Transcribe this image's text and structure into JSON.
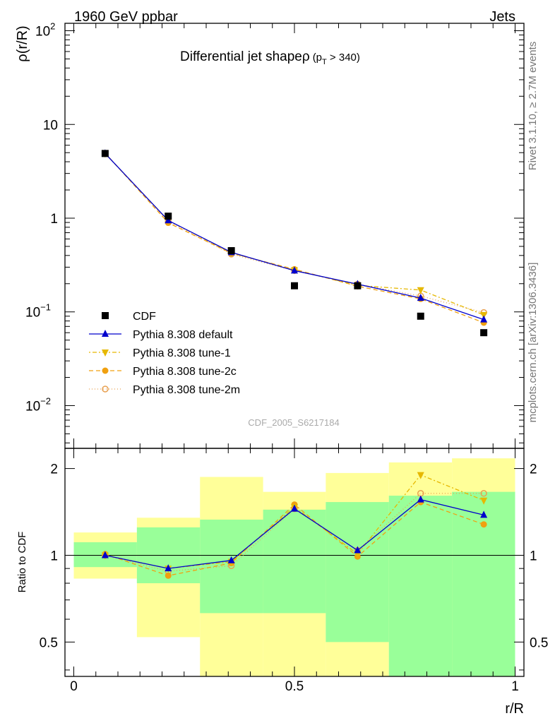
{
  "header": {
    "left": "1960 GeV ppbar",
    "right": "Jets",
    "plot_title": "Differential jet shapeρ",
    "title_cut_pre": "(p",
    "title_cut_sub": "T",
    "title_cut_post": " > 340)",
    "watermark": "CDF_2005_S6217184",
    "side_rivet": "Rivet 3.1.10, ≥ 2.7M events",
    "side_site": "mcplots.cern.ch [arXiv:1306.3436]"
  },
  "axes": {
    "ylabel_top": "ρ(r/R)",
    "ylabel_bottom": "Ratio to CDF",
    "xlabel": "r/R",
    "top_ticks": [
      {
        "v": 0.01,
        "base": "10",
        "exp": "−2"
      },
      {
        "v": 0.1,
        "base": "10",
        "exp": "−1"
      },
      {
        "v": 1,
        "base": "1",
        "exp": ""
      },
      {
        "v": 10,
        "base": "10",
        "exp": ""
      },
      {
        "v": 100,
        "base": "10",
        "exp": "2"
      }
    ],
    "ratio_ticks": [
      {
        "v": 0.5,
        "label": "0.5"
      },
      {
        "v": 1,
        "label": "1"
      },
      {
        "v": 2,
        "label": "2"
      }
    ],
    "x_ticks": [
      {
        "v": 0,
        "label": "0"
      },
      {
        "v": 0.5,
        "label": "0.5"
      },
      {
        "v": 1,
        "label": "1"
      }
    ]
  },
  "chart_data": {
    "type": "scatter",
    "x_range": [
      -0.02,
      1.02
    ],
    "y_range_top": [
      0.0035,
      120
    ],
    "y_log_top": true,
    "y_range_ratio": [
      0.38,
      2.35
    ],
    "y_log_ratio": true,
    "bin_edges": [
      0.0,
      0.143,
      0.286,
      0.429,
      0.571,
      0.714,
      0.857,
      1.0
    ],
    "x": [
      0.071,
      0.214,
      0.357,
      0.5,
      0.643,
      0.786,
      0.929
    ],
    "legend_position": "left-middle",
    "data": {
      "name": "CDF",
      "values": [
        4.9,
        1.05,
        0.45,
        0.19,
        0.19,
        0.09,
        0.06
      ]
    },
    "series": [
      {
        "name": "Pythia 8.308 default",
        "color": "#0000cc",
        "dash": "",
        "marker": "triangle",
        "ratio": [
          1.0,
          0.9,
          0.96,
          1.45,
          1.04,
          1.56,
          1.38
        ]
      },
      {
        "name": "Pythia 8.308 tune-1",
        "color": "#e6b800",
        "dash": "2,3,6,3",
        "marker": "triangle-down",
        "ratio": [
          1.0,
          0.9,
          0.95,
          1.47,
          1.01,
          1.9,
          1.55
        ]
      },
      {
        "name": "Pythia 8.308 tune-2c",
        "color": "#f0a010",
        "dash": "6,4",
        "marker": "circle",
        "ratio": [
          1.01,
          0.85,
          0.94,
          1.5,
          0.99,
          1.53,
          1.28
        ]
      },
      {
        "name": "Pythia 8.308 tune-2m",
        "color": "#e8a050",
        "dash": "1,3",
        "marker": "open-circle",
        "ratio": [
          1.0,
          0.88,
          0.92,
          1.45,
          1.04,
          1.64,
          1.64
        ]
      }
    ],
    "ratio_bands": {
      "green": [
        [
          0.91,
          1.11
        ],
        [
          0.8,
          1.25
        ],
        [
          0.63,
          1.33
        ],
        [
          0.63,
          1.44
        ],
        [
          0.5,
          1.53
        ],
        [
          0.36,
          1.61
        ],
        [
          0.33,
          1.66
        ]
      ],
      "yellow": [
        [
          0.83,
          1.2
        ],
        [
          0.52,
          1.35
        ],
        [
          0.32,
          1.87
        ],
        [
          0.32,
          1.66
        ],
        [
          0.3,
          1.93
        ],
        [
          0.36,
          2.1
        ],
        [
          0.3,
          2.17
        ]
      ]
    }
  }
}
